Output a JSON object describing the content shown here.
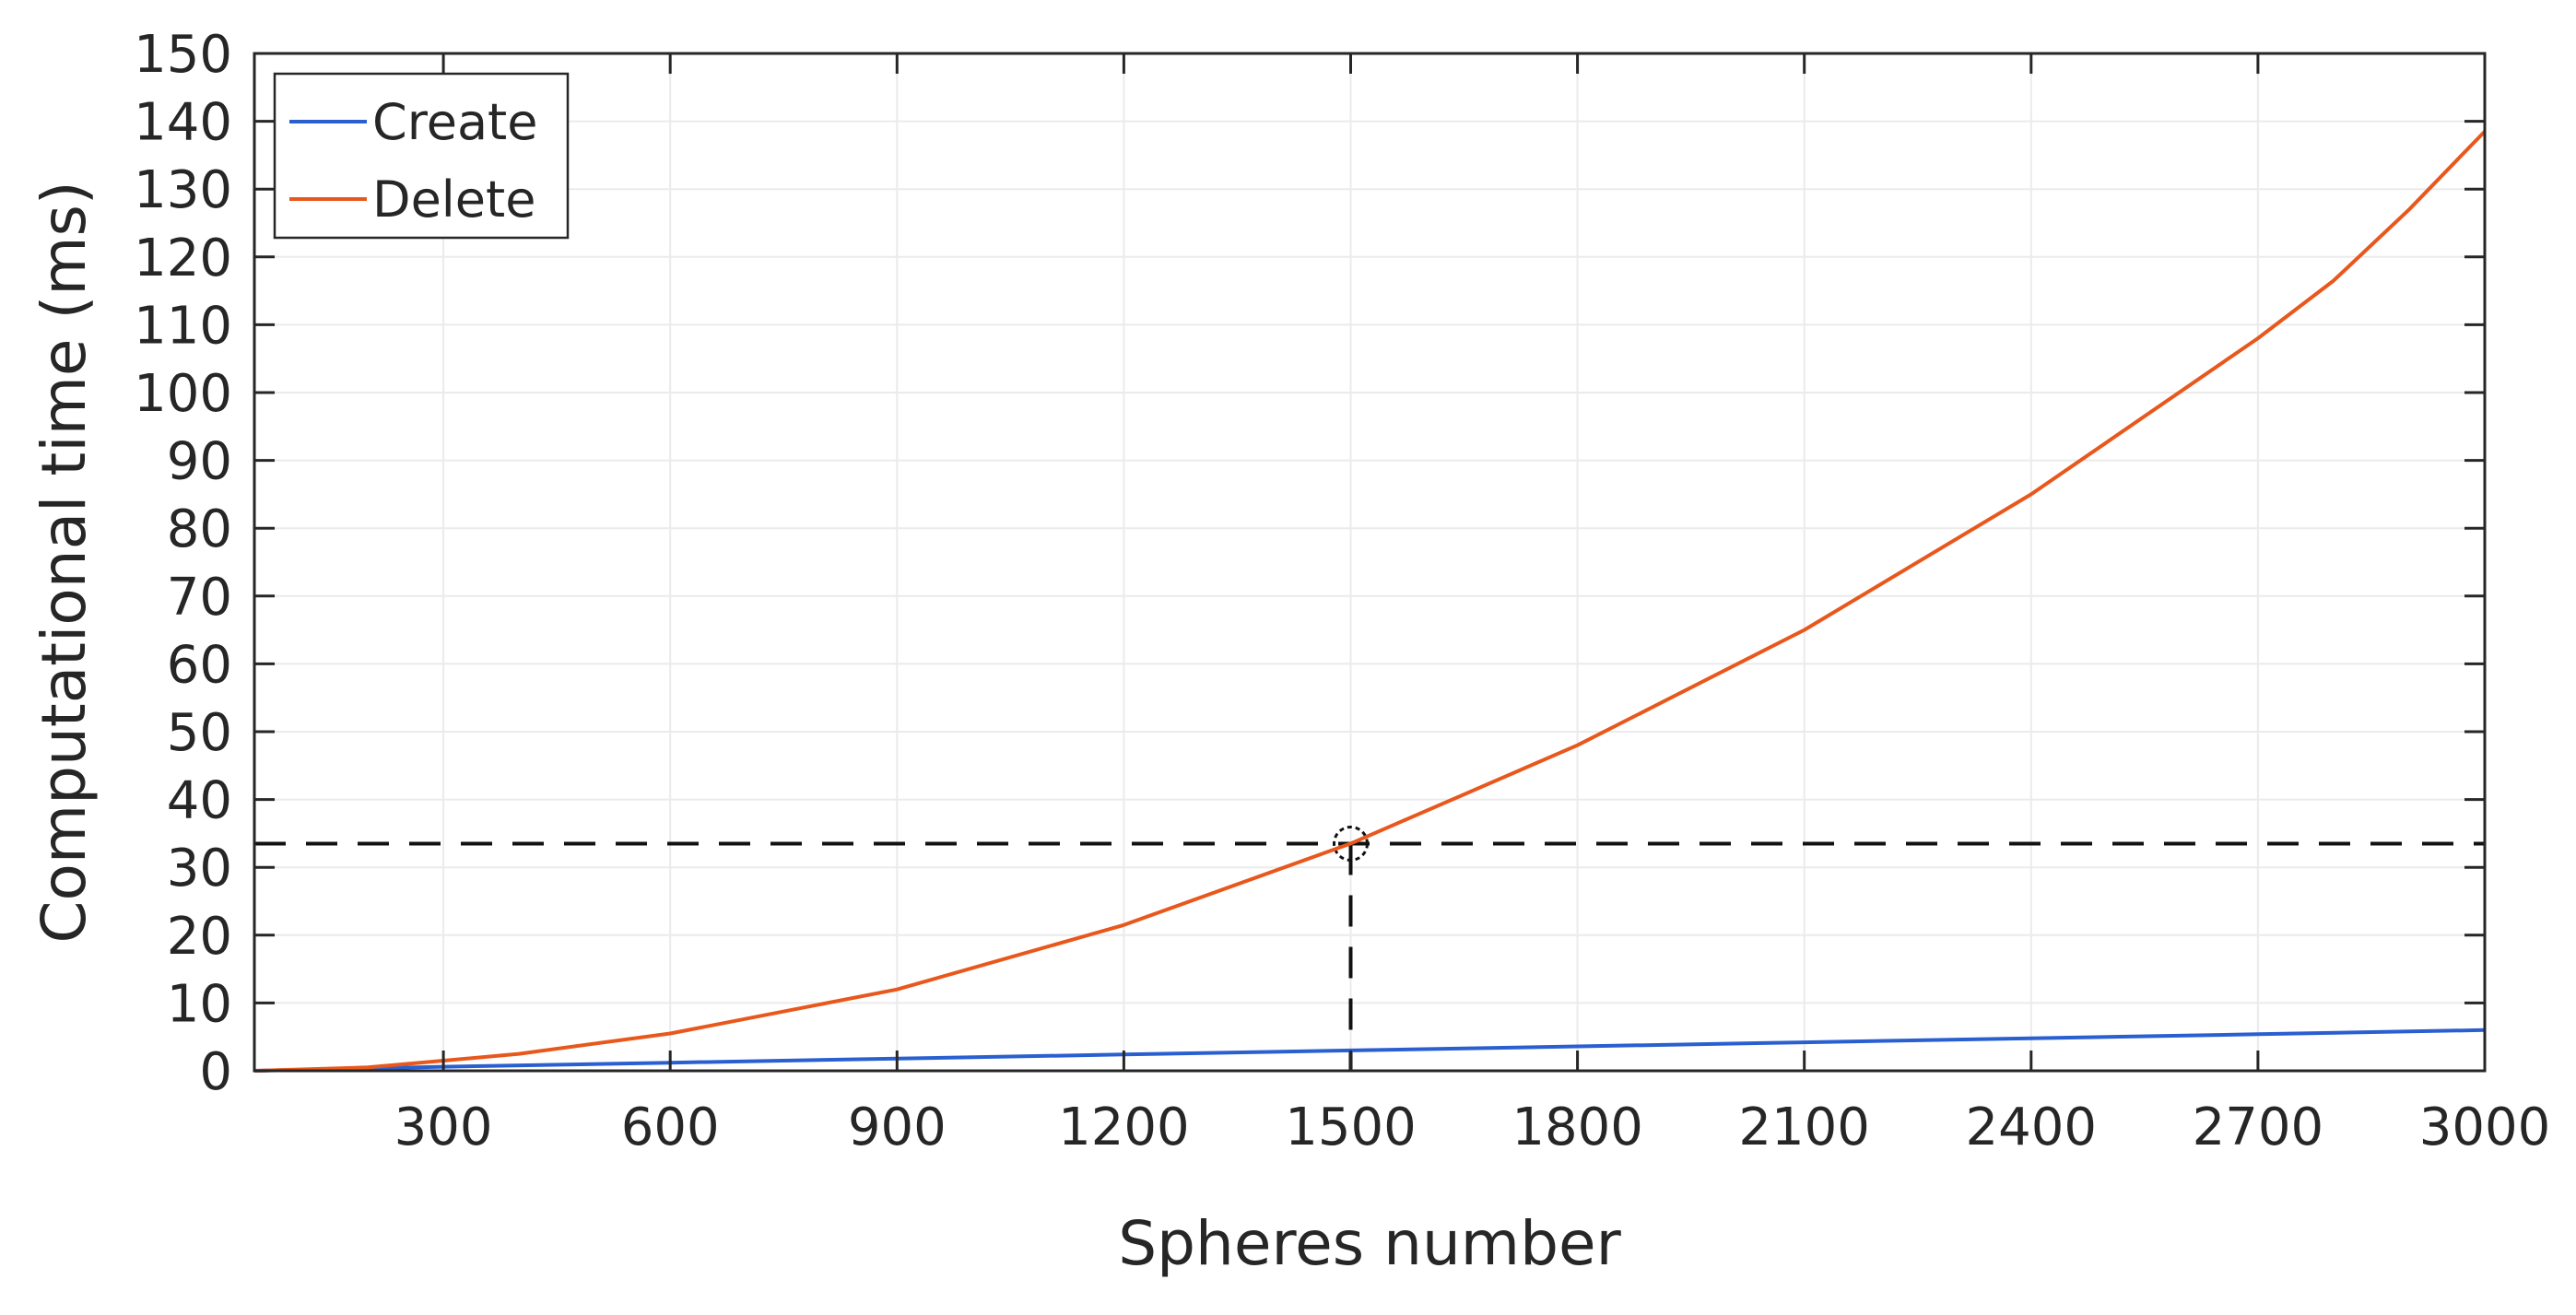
{
  "chart_data": {
    "type": "line",
    "title": "",
    "xlabel": "Spheres number",
    "ylabel": "Computational time (ms)",
    "xlim": [
      50,
      3000
    ],
    "ylim": [
      0,
      150
    ],
    "xticks": [
      300,
      600,
      900,
      1200,
      1500,
      1800,
      2100,
      2400,
      2700,
      3000
    ],
    "yticks": [
      0,
      10,
      20,
      30,
      40,
      50,
      60,
      70,
      80,
      90,
      100,
      110,
      120,
      130,
      140,
      150
    ],
    "grid": true,
    "legend": "top-left",
    "series": [
      {
        "name": "Create",
        "color": "#2a5fd0",
        "x": [
          50,
          300,
          600,
          900,
          1200,
          1500,
          1800,
          2100,
          2400,
          2700,
          3000
        ],
        "y": [
          0,
          0.6,
          1.2,
          1.8,
          2.4,
          3.0,
          3.6,
          4.2,
          4.8,
          5.4,
          6.0
        ]
      },
      {
        "name": "Delete",
        "color": "#e8581c",
        "x": [
          50,
          200,
          300,
          400,
          600,
          900,
          1200,
          1500,
          1800,
          2100,
          2400,
          2700,
          2800,
          2900,
          3000
        ],
        "y": [
          0,
          0.5,
          1.5,
          2.5,
          5.5,
          12,
          21.5,
          33.5,
          48,
          65,
          85,
          108,
          116.5,
          127,
          138.5
        ]
      }
    ],
    "annotations": [
      {
        "type": "marker",
        "x": 1500,
        "y": 33.5
      },
      {
        "type": "hline-dashed",
        "y": 33.5
      },
      {
        "type": "vline-dashed",
        "x": 1500
      }
    ]
  }
}
